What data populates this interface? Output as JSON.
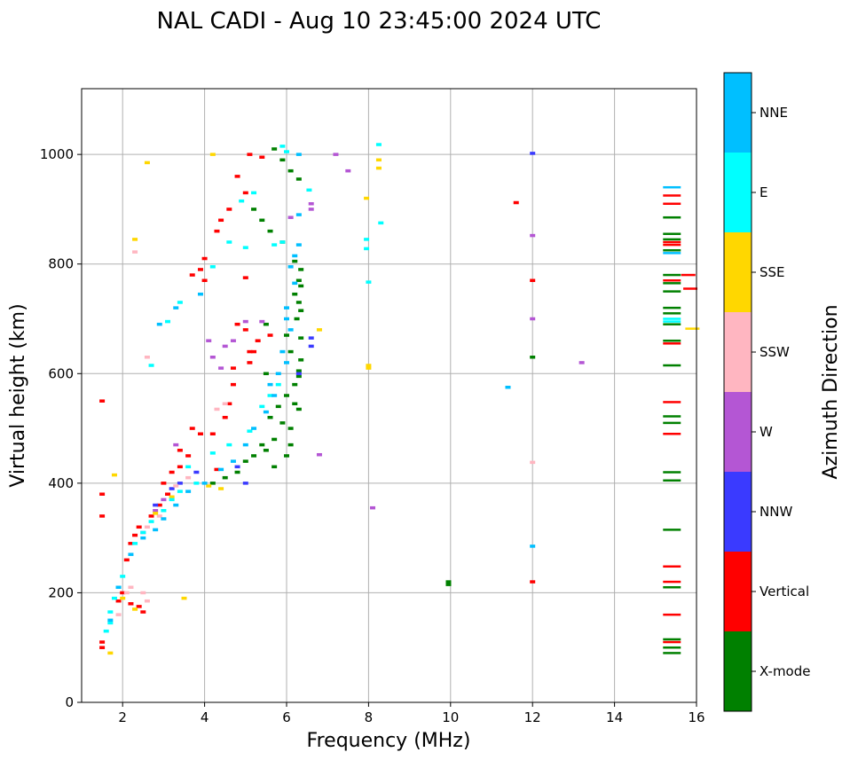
{
  "chart_data": {
    "type": "scatter",
    "title": "NAL CADI - Aug 10 23:45:00 2024 UTC",
    "xlabel": "Frequency (MHz)",
    "ylabel": "Virtual height (km)",
    "xlim": [
      1,
      16
    ],
    "ylim": [
      0,
      1120
    ],
    "xticks": [
      2,
      4,
      6,
      8,
      10,
      12,
      14,
      16
    ],
    "yticks": [
      0,
      200,
      400,
      600,
      800,
      1000
    ],
    "grid": true,
    "colorbar": {
      "title": "Azimuth Direction",
      "categories": [
        {
          "label": "X-mode",
          "color": "#008000"
        },
        {
          "label": "Vertical",
          "color": "#ff0000"
        },
        {
          "label": "NNW",
          "color": "#3a3aff"
        },
        {
          "label": "W",
          "color": "#b456d4"
        },
        {
          "label": "SSW",
          "color": "#ffb6c1"
        },
        {
          "label": "SSE",
          "color": "#ffd700"
        },
        {
          "label": "E",
          "color": "#00ffff"
        },
        {
          "label": "NNE",
          "color": "#00bfff"
        }
      ]
    },
    "series": [
      {
        "name": "X-mode",
        "points": [
          [
            5.7,
            1010
          ],
          [
            5.9,
            990
          ],
          [
            6.1,
            970
          ],
          [
            6.3,
            955
          ],
          [
            5.2,
            900
          ],
          [
            5.4,
            880
          ],
          [
            5.6,
            860
          ],
          [
            5.9,
            840
          ],
          [
            6.2,
            805
          ],
          [
            6.35,
            790
          ],
          [
            6.3,
            770
          ],
          [
            6.35,
            760
          ],
          [
            6.2,
            745
          ],
          [
            6.3,
            730
          ],
          [
            6.35,
            715
          ],
          [
            6.25,
            700
          ],
          [
            5.5,
            690
          ],
          [
            6.0,
            670
          ],
          [
            6.35,
            665
          ],
          [
            6.1,
            640
          ],
          [
            6.35,
            625
          ],
          [
            6.3,
            605
          ],
          [
            6.3,
            595
          ],
          [
            6.2,
            580
          ],
          [
            6.0,
            560
          ],
          [
            6.2,
            545
          ],
          [
            6.3,
            535
          ],
          [
            5.6,
            520
          ],
          [
            5.9,
            510
          ],
          [
            6.1,
            500
          ],
          [
            5.7,
            480
          ],
          [
            5.4,
            470
          ],
          [
            5.5,
            460
          ],
          [
            5.2,
            450
          ],
          [
            5.0,
            440
          ],
          [
            5.7,
            430
          ],
          [
            4.8,
            420
          ],
          [
            4.5,
            410
          ],
          [
            4.2,
            400
          ],
          [
            6.0,
            450
          ],
          [
            6.1,
            470
          ],
          [
            5.8,
            540
          ],
          [
            5.5,
            600
          ],
          [
            9.95,
            215
          ],
          [
            9.95,
            220
          ],
          [
            12.0,
            630
          ],
          [
            15.4,
            885
          ],
          [
            15.4,
            855
          ],
          [
            15.4,
            845
          ],
          [
            15.4,
            825
          ],
          [
            15.4,
            780
          ],
          [
            15.4,
            765
          ],
          [
            15.4,
            750
          ],
          [
            15.4,
            720
          ],
          [
            15.4,
            710
          ],
          [
            15.4,
            690
          ],
          [
            15.4,
            660
          ],
          [
            15.4,
            615
          ],
          [
            15.4,
            522
          ],
          [
            15.4,
            510
          ],
          [
            15.4,
            420
          ],
          [
            15.4,
            405
          ],
          [
            15.4,
            315
          ],
          [
            15.4,
            210
          ],
          [
            15.4,
            115
          ],
          [
            15.4,
            100
          ],
          [
            15.4,
            90
          ]
        ]
      },
      {
        "name": "Vertical",
        "points": [
          [
            5.1,
            1000
          ],
          [
            5.4,
            995
          ],
          [
            4.8,
            960
          ],
          [
            5.0,
            930
          ],
          [
            4.6,
            900
          ],
          [
            4.4,
            880
          ],
          [
            4.3,
            860
          ],
          [
            4.0,
            810
          ],
          [
            3.9,
            790
          ],
          [
            3.7,
            780
          ],
          [
            4.0,
            770
          ],
          [
            5.0,
            775
          ],
          [
            4.8,
            690
          ],
          [
            5.0,
            680
          ],
          [
            5.3,
            660
          ],
          [
            5.6,
            670
          ],
          [
            5.2,
            640
          ],
          [
            5.1,
            620
          ],
          [
            4.7,
            610
          ],
          [
            4.7,
            580
          ],
          [
            4.6,
            545
          ],
          [
            4.5,
            520
          ],
          [
            3.7,
            500
          ],
          [
            3.9,
            490
          ],
          [
            4.2,
            490
          ],
          [
            3.4,
            460
          ],
          [
            3.6,
            450
          ],
          [
            3.4,
            430
          ],
          [
            3.2,
            420
          ],
          [
            3.0,
            400
          ],
          [
            3.1,
            380
          ],
          [
            2.9,
            360
          ],
          [
            2.7,
            340
          ],
          [
            2.4,
            320
          ],
          [
            2.3,
            305
          ],
          [
            2.2,
            290
          ],
          [
            2.1,
            260
          ],
          [
            2.0,
            200
          ],
          [
            1.9,
            185
          ],
          [
            2.2,
            180
          ],
          [
            2.4,
            175
          ],
          [
            2.5,
            165
          ],
          [
            1.5,
            110
          ],
          [
            1.5,
            100
          ],
          [
            1.5,
            340
          ],
          [
            1.5,
            380
          ],
          [
            1.5,
            550
          ],
          [
            4.3,
            425
          ],
          [
            5.1,
            640
          ],
          [
            11.6,
            912
          ],
          [
            12.0,
            770
          ],
          [
            12.0,
            220
          ],
          [
            15.4,
            925
          ],
          [
            15.4,
            910
          ],
          [
            15.4,
            840
          ],
          [
            15.4,
            835
          ],
          [
            15.4,
            770
          ],
          [
            15.4,
            655
          ],
          [
            15.4,
            548
          ],
          [
            15.4,
            490
          ],
          [
            15.4,
            248
          ],
          [
            15.4,
            220
          ],
          [
            15.4,
            160
          ],
          [
            15.4,
            110
          ],
          [
            15.8,
            780
          ],
          [
            15.85,
            755
          ]
        ]
      },
      {
        "name": "NNW",
        "points": [
          [
            6.6,
            665
          ],
          [
            6.6,
            650
          ],
          [
            4.8,
            430
          ],
          [
            5.0,
            400
          ],
          [
            3.8,
            420
          ],
          [
            3.4,
            400
          ],
          [
            3.2,
            390
          ],
          [
            2.8,
            360
          ],
          [
            6.3,
            600
          ],
          [
            12.0,
            1002
          ]
        ]
      },
      {
        "name": "W",
        "points": [
          [
            7.2,
            1000
          ],
          [
            7.5,
            970
          ],
          [
            6.6,
            910
          ],
          [
            6.6,
            900
          ],
          [
            6.1,
            885
          ],
          [
            5.0,
            695
          ],
          [
            5.4,
            695
          ],
          [
            4.7,
            660
          ],
          [
            4.1,
            660
          ],
          [
            4.5,
            650
          ],
          [
            4.2,
            630
          ],
          [
            4.4,
            610
          ],
          [
            3.3,
            470
          ],
          [
            3.0,
            370
          ],
          [
            2.8,
            350
          ],
          [
            2.5,
            310
          ],
          [
            8.1,
            355
          ],
          [
            12.0,
            700
          ],
          [
            12.0,
            852
          ],
          [
            13.2,
            620
          ],
          [
            6.8,
            452
          ]
        ]
      },
      {
        "name": "SSW",
        "points": [
          [
            2.3,
            822
          ],
          [
            2.6,
            630
          ],
          [
            4.5,
            545
          ],
          [
            4.3,
            535
          ],
          [
            3.6,
            410
          ],
          [
            3.3,
            395
          ],
          [
            2.9,
            340
          ],
          [
            2.6,
            320
          ],
          [
            2.2,
            210
          ],
          [
            2.1,
            200
          ],
          [
            1.9,
            160
          ],
          [
            2.6,
            185
          ],
          [
            2.5,
            200
          ],
          [
            12.0,
            438
          ]
        ]
      },
      {
        "name": "SSE",
        "points": [
          [
            2.6,
            985
          ],
          [
            2.3,
            845
          ],
          [
            4.2,
            1000
          ],
          [
            8.25,
            990
          ],
          [
            8.25,
            975
          ],
          [
            7.95,
            920
          ],
          [
            8.0,
            615
          ],
          [
            8.0,
            610
          ],
          [
            6.8,
            680
          ],
          [
            4.1,
            395
          ],
          [
            4.4,
            390
          ],
          [
            3.2,
            375
          ],
          [
            2.8,
            345
          ],
          [
            2.0,
            190
          ],
          [
            2.3,
            170
          ],
          [
            1.7,
            90
          ],
          [
            1.8,
            415
          ],
          [
            3.5,
            190
          ],
          [
            15.9,
            682
          ]
        ]
      },
      {
        "name": "E",
        "points": [
          [
            5.9,
            1015
          ],
          [
            6.0,
            1005
          ],
          [
            8.25,
            1018
          ],
          [
            8.3,
            875
          ],
          [
            6.55,
            935
          ],
          [
            5.2,
            930
          ],
          [
            4.9,
            915
          ],
          [
            4.6,
            840
          ],
          [
            5.0,
            830
          ],
          [
            5.7,
            835
          ],
          [
            5.9,
            840
          ],
          [
            3.4,
            730
          ],
          [
            3.1,
            695
          ],
          [
            2.7,
            615
          ],
          [
            5.8,
            580
          ],
          [
            5.6,
            560
          ],
          [
            5.4,
            540
          ],
          [
            5.1,
            495
          ],
          [
            4.6,
            470
          ],
          [
            4.2,
            455
          ],
          [
            3.6,
            430
          ],
          [
            3.8,
            400
          ],
          [
            3.4,
            385
          ],
          [
            3.2,
            370
          ],
          [
            3.0,
            350
          ],
          [
            2.7,
            330
          ],
          [
            2.5,
            310
          ],
          [
            2.3,
            290
          ],
          [
            2.0,
            230
          ],
          [
            1.9,
            210
          ],
          [
            1.8,
            190
          ],
          [
            1.7,
            165
          ],
          [
            1.7,
            145
          ],
          [
            1.6,
            130
          ],
          [
            7.95,
            845
          ],
          [
            7.95,
            828
          ],
          [
            8.0,
            767
          ],
          [
            4.2,
            795
          ],
          [
            15.4,
            700
          ],
          [
            15.4,
            695
          ]
        ]
      },
      {
        "name": "NNE",
        "points": [
          [
            6.3,
            1000
          ],
          [
            6.3,
            890
          ],
          [
            6.3,
            835
          ],
          [
            6.2,
            815
          ],
          [
            6.1,
            795
          ],
          [
            6.2,
            765
          ],
          [
            6.0,
            720
          ],
          [
            6.0,
            700
          ],
          [
            6.1,
            680
          ],
          [
            5.9,
            640
          ],
          [
            6.0,
            620
          ],
          [
            5.8,
            600
          ],
          [
            5.6,
            580
          ],
          [
            5.7,
            560
          ],
          [
            5.5,
            530
          ],
          [
            5.2,
            500
          ],
          [
            5.0,
            470
          ],
          [
            4.7,
            440
          ],
          [
            4.4,
            425
          ],
          [
            4.0,
            400
          ],
          [
            3.6,
            385
          ],
          [
            3.3,
            360
          ],
          [
            3.0,
            335
          ],
          [
            2.8,
            315
          ],
          [
            2.5,
            300
          ],
          [
            2.2,
            270
          ],
          [
            1.9,
            210
          ],
          [
            1.7,
            150
          ],
          [
            3.9,
            745
          ],
          [
            3.3,
            720
          ],
          [
            2.9,
            690
          ],
          [
            11.4,
            575
          ],
          [
            12.0,
            285
          ],
          [
            15.4,
            940
          ],
          [
            15.4,
            820
          ]
        ]
      }
    ]
  }
}
